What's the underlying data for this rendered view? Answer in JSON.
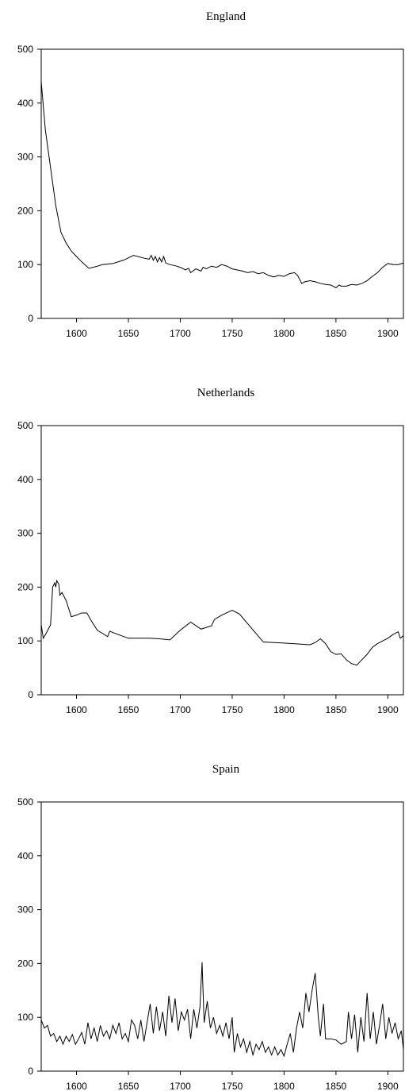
{
  "chart_data": [
    {
      "type": "line",
      "title": "England",
      "x": [
        1566,
        1570,
        1575,
        1580,
        1585,
        1590,
        1595,
        1600,
        1605,
        1612,
        1620,
        1625,
        1635,
        1645,
        1655,
        1665,
        1670,
        1672,
        1674,
        1676,
        1678,
        1680,
        1682,
        1684,
        1686,
        1690,
        1695,
        1700,
        1705,
        1708,
        1710,
        1715,
        1720,
        1722,
        1725,
        1730,
        1735,
        1740,
        1745,
        1750,
        1755,
        1760,
        1765,
        1770,
        1775,
        1780,
        1785,
        1790,
        1795,
        1800,
        1805,
        1810,
        1813,
        1817,
        1820,
        1825,
        1830,
        1835,
        1840,
        1845,
        1850,
        1853,
        1855,
        1860,
        1865,
        1870,
        1875,
        1880,
        1885,
        1890,
        1895,
        1900,
        1905,
        1910,
        1915
      ],
      "series": [
        {
          "name": "England",
          "color": "#000000",
          "values": [
            440,
            350,
            280,
            210,
            160,
            140,
            125,
            115,
            105,
            93,
            97,
            100,
            102,
            108,
            117,
            112,
            110,
            117,
            108,
            115,
            105,
            113,
            105,
            115,
            103,
            100,
            98,
            95,
            90,
            93,
            85,
            92,
            88,
            95,
            92,
            97,
            95,
            100,
            97,
            92,
            90,
            88,
            85,
            87,
            83,
            85,
            80,
            77,
            80,
            78,
            83,
            85,
            80,
            65,
            68,
            70,
            68,
            65,
            63,
            62,
            57,
            62,
            60,
            60,
            63,
            62,
            65,
            70,
            78,
            85,
            95,
            102,
            100,
            100,
            103
          ]
        }
      ],
      "xlim": [
        1566,
        1915
      ],
      "ylim": [
        0,
        500
      ],
      "xticks": [
        1600,
        1650,
        1700,
        1750,
        1800,
        1850,
        1900
      ],
      "yticks": [
        0,
        100,
        200,
        300,
        400,
        500
      ]
    },
    {
      "type": "line",
      "title": "Netherlands",
      "x": [
        1566,
        1568,
        1571,
        1575,
        1577,
        1579,
        1580,
        1581,
        1583,
        1584,
        1586,
        1590,
        1595,
        1600,
        1605,
        1610,
        1615,
        1620,
        1630,
        1632,
        1640,
        1650,
        1670,
        1680,
        1690,
        1700,
        1710,
        1720,
        1730,
        1733,
        1740,
        1750,
        1757,
        1780,
        1800,
        1825,
        1830,
        1835,
        1840,
        1845,
        1850,
        1855,
        1860,
        1865,
        1870,
        1875,
        1880,
        1885,
        1890,
        1895,
        1900,
        1905,
        1910,
        1912,
        1915
      ],
      "series": [
        {
          "name": "Netherlands",
          "color": "#000000",
          "values": [
            130,
            105,
            115,
            130,
            200,
            208,
            200,
            212,
            205,
            185,
            190,
            175,
            145,
            148,
            152,
            152,
            135,
            120,
            108,
            118,
            112,
            105,
            105,
            104,
            102,
            120,
            135,
            122,
            128,
            140,
            148,
            157,
            150,
            98,
            96,
            93,
            97,
            104,
            95,
            80,
            75,
            76,
            65,
            58,
            55,
            65,
            75,
            88,
            95,
            100,
            105,
            112,
            117,
            105,
            110
          ]
        }
      ],
      "xlim": [
        1566,
        1915
      ],
      "ylim": [
        0,
        500
      ],
      "xticks": [
        1600,
        1650,
        1700,
        1750,
        1800,
        1850,
        1900
      ],
      "yticks": [
        0,
        100,
        200,
        300,
        400,
        500
      ]
    },
    {
      "type": "line",
      "title": "Spain",
      "x": [
        1566,
        1569,
        1572,
        1575,
        1578,
        1581,
        1584,
        1587,
        1590,
        1593,
        1596,
        1599,
        1602,
        1605,
        1608,
        1611,
        1614,
        1617,
        1620,
        1623,
        1626,
        1629,
        1632,
        1635,
        1638,
        1641,
        1644,
        1647,
        1650,
        1653,
        1656,
        1659,
        1662,
        1665,
        1668,
        1671,
        1674,
        1677,
        1680,
        1683,
        1686,
        1689,
        1692,
        1695,
        1698,
        1701,
        1704,
        1707,
        1710,
        1713,
        1716,
        1719,
        1721,
        1723,
        1726,
        1729,
        1732,
        1735,
        1738,
        1741,
        1744,
        1747,
        1750,
        1752,
        1755,
        1758,
        1761,
        1764,
        1767,
        1770,
        1773,
        1776,
        1779,
        1782,
        1785,
        1788,
        1791,
        1794,
        1797,
        1800,
        1803,
        1806,
        1809,
        1812,
        1815,
        1818,
        1821,
        1824,
        1827,
        1830,
        1833,
        1835,
        1838,
        1840,
        1845,
        1850,
        1855,
        1860,
        1862,
        1865,
        1868,
        1871,
        1874,
        1877,
        1880,
        1883,
        1886,
        1889,
        1892,
        1895,
        1898,
        1901,
        1904,
        1907,
        1910,
        1913,
        1915
      ],
      "series": [
        {
          "name": "Spain",
          "color": "#000000",
          "values": [
            95,
            80,
            85,
            65,
            70,
            55,
            65,
            50,
            65,
            55,
            68,
            50,
            60,
            72,
            50,
            90,
            60,
            80,
            55,
            85,
            65,
            75,
            60,
            85,
            70,
            90,
            60,
            70,
            55,
            95,
            85,
            60,
            95,
            55,
            90,
            125,
            70,
            120,
            75,
            110,
            65,
            140,
            90,
            135,
            75,
            110,
            95,
            115,
            60,
            115,
            80,
            120,
            202,
            90,
            130,
            80,
            100,
            70,
            85,
            65,
            90,
            60,
            100,
            35,
            70,
            45,
            60,
            35,
            55,
            30,
            50,
            40,
            55,
            35,
            45,
            30,
            45,
            30,
            40,
            28,
            50,
            70,
            35,
            80,
            110,
            80,
            145,
            110,
            150,
            182,
            100,
            65,
            125,
            60,
            60,
            58,
            50,
            55,
            110,
            60,
            105,
            35,
            100,
            55,
            145,
            60,
            110,
            50,
            85,
            125,
            60,
            100,
            70,
            90,
            60,
            75,
            40
          ]
        }
      ],
      "xlim": [
        1566,
        1915
      ],
      "ylim": [
        0,
        500
      ],
      "xticks": [
        1600,
        1650,
        1700,
        1750,
        1800,
        1850,
        1900
      ],
      "yticks": [
        0,
        100,
        200,
        300,
        400,
        500
      ]
    }
  ]
}
